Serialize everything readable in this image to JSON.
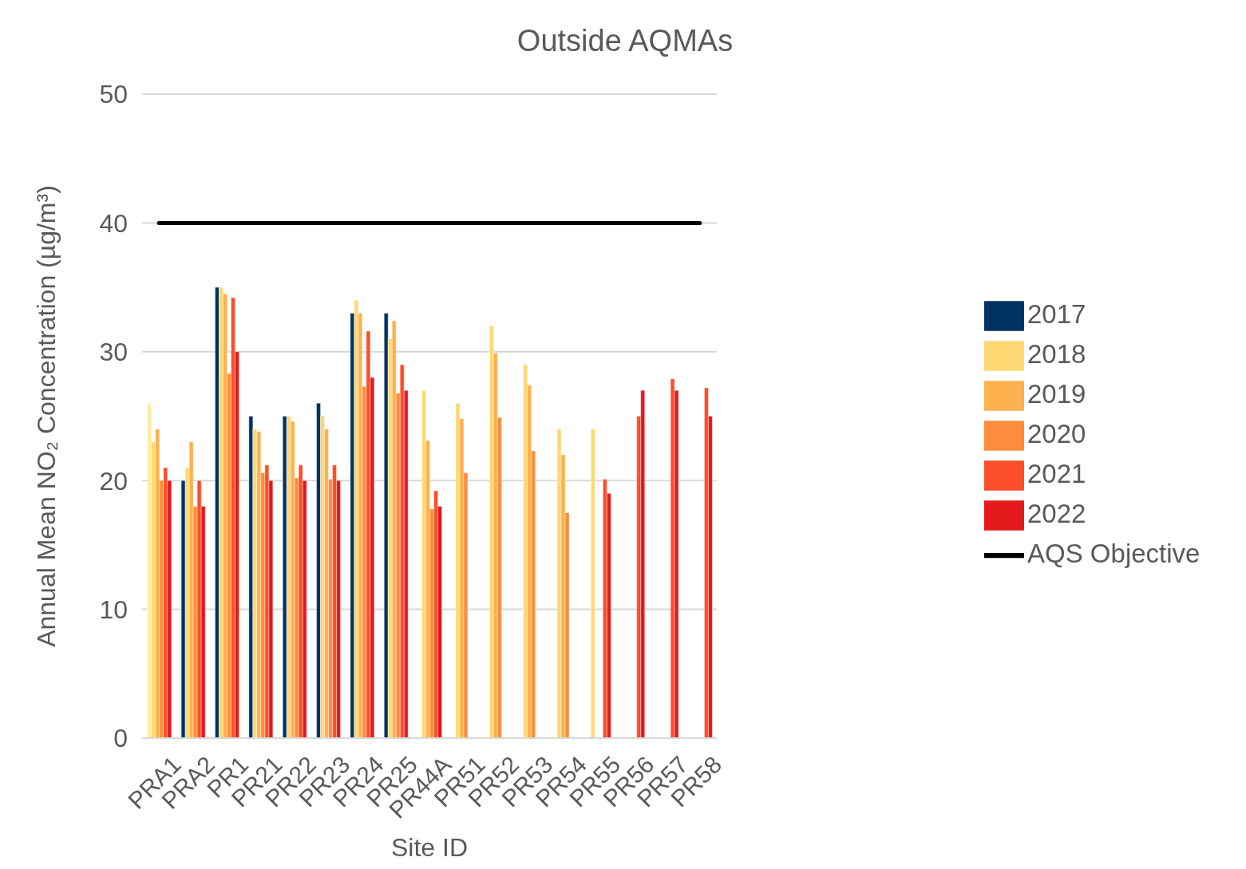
{
  "chart_data": {
    "type": "bar",
    "title": "Outside AQMAs",
    "xlabel": "Site ID",
    "ylabel": "Annual Mean NO₂ Concentration (µg/m³)",
    "categories": [
      "PRA1",
      "PRA2",
      "PR1",
      "PR21",
      "PR22",
      "PR23",
      "PR24",
      "PR25",
      "PR44A",
      "PR51",
      "PR52",
      "PR53",
      "PR54",
      "PR55",
      "PR56",
      "PR57",
      "PR58"
    ],
    "series": [
      {
        "name": "2017",
        "color": "#003361",
        "colors": [
          "#ffeb9c",
          null,
          null,
          null,
          null,
          null,
          null,
          null,
          null,
          null,
          null,
          null,
          null,
          null,
          null,
          null,
          null
        ],
        "values": [
          26,
          20,
          35,
          25,
          25,
          26,
          33,
          33,
          null,
          null,
          null,
          null,
          null,
          null,
          null,
          null,
          null
        ]
      },
      {
        "name": "2018",
        "color": "#ffd874",
        "values": [
          23,
          21,
          35,
          24,
          25,
          25,
          34,
          31,
          27,
          26,
          32,
          29,
          24,
          24,
          null,
          null,
          null
        ]
      },
      {
        "name": "2019",
        "color": "#fdb14f",
        "values": [
          24,
          23,
          34.5,
          23.8,
          24.6,
          24,
          33,
          32.4,
          23.1,
          24.8,
          29.9,
          27.4,
          22,
          null,
          null,
          null,
          null
        ]
      },
      {
        "name": "2020",
        "color": "#fd8d3c",
        "values": [
          20,
          18,
          28.3,
          20.6,
          20.2,
          20.1,
          27.3,
          26.8,
          17.8,
          20.6,
          24.9,
          22.3,
          17.5,
          null,
          null,
          null,
          null
        ]
      },
      {
        "name": "2021",
        "color": "#fc4e2a",
        "values": [
          21,
          20,
          34.2,
          21.2,
          21.2,
          21.2,
          31.6,
          29,
          19.2,
          null,
          null,
          null,
          null,
          20.1,
          25,
          27.9,
          27.2
        ]
      },
      {
        "name": "2022",
        "color": "#e31a1c",
        "values": [
          20,
          18,
          30,
          20,
          20,
          20,
          28,
          27,
          18,
          null,
          null,
          null,
          null,
          19,
          27,
          27,
          25
        ]
      },
      {
        "name": "AQS Objective",
        "type": "line",
        "color": "#000000",
        "marker": "none",
        "values": [
          40,
          40,
          40,
          40,
          40,
          40,
          40,
          40,
          40,
          40,
          40,
          40,
          40,
          40,
          40,
          40,
          40
        ]
      }
    ],
    "ylim": [
      0,
      50
    ],
    "yticks": [
      0,
      10,
      20,
      30,
      40,
      50
    ],
    "grid": "y",
    "legend": "right"
  }
}
